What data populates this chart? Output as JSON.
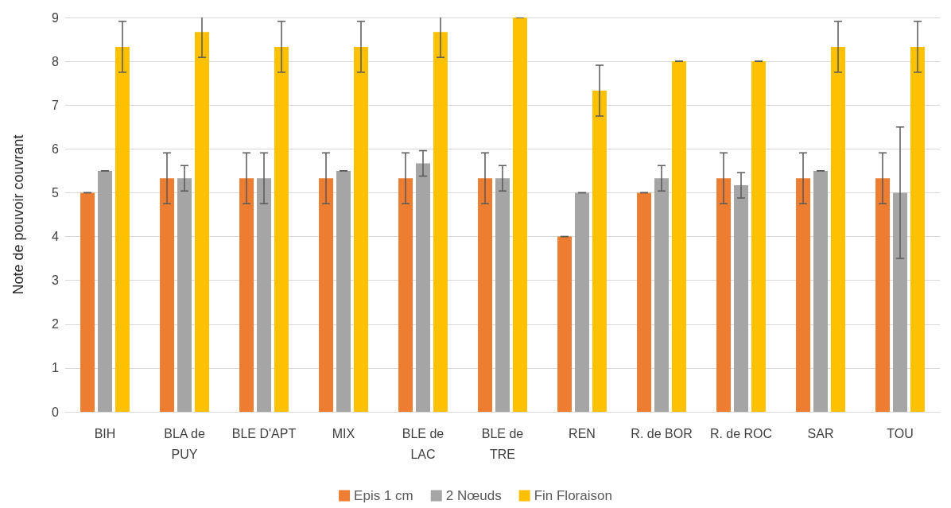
{
  "chart_data": {
    "type": "bar",
    "ylabel": "Note de pouvoir couvrant",
    "categories": [
      "BIH",
      "BLA de\nPUY",
      "BLE D'APT",
      "MIX",
      "BLE de\nLAC",
      "BLE de\nTRE",
      "REN",
      "R. de BOR",
      "R. de ROC",
      "SAR",
      "TOU"
    ],
    "series": [
      {
        "name": "Epis 1 cm",
        "color": "#ed7d31",
        "values": [
          5,
          5.33,
          5.33,
          5.33,
          5.33,
          5.33,
          4,
          5,
          5.33,
          5.33,
          5.33
        ],
        "errors": [
          0,
          0.58,
          0.58,
          0.58,
          0.58,
          0.58,
          0,
          0,
          0.58,
          0.58,
          0.58
        ]
      },
      {
        "name": "2 Nœuds",
        "color": "#a5a5a5",
        "values": [
          5.5,
          5.33,
          5.33,
          5.5,
          5.67,
          5.33,
          5,
          5.33,
          5.17,
          5.5,
          5
        ],
        "errors": [
          0,
          0.29,
          0.58,
          0,
          0.29,
          0.29,
          0,
          0.29,
          0.29,
          0,
          1.5
        ]
      },
      {
        "name": "Fin Floraison",
        "color": "#ffc000",
        "values": [
          8.33,
          8.67,
          8.33,
          8.33,
          8.67,
          9,
          7.33,
          8,
          8,
          8.33,
          8.33
        ],
        "errors": [
          0.58,
          0.58,
          0.58,
          0.58,
          0.58,
          0,
          0.58,
          0,
          0,
          0.58,
          0.58
        ]
      }
    ],
    "ylim": [
      0,
      9
    ],
    "yticks": [
      0,
      1,
      2,
      3,
      4,
      5,
      6,
      7,
      8,
      9
    ],
    "grid": "y",
    "legend": "bottom"
  }
}
